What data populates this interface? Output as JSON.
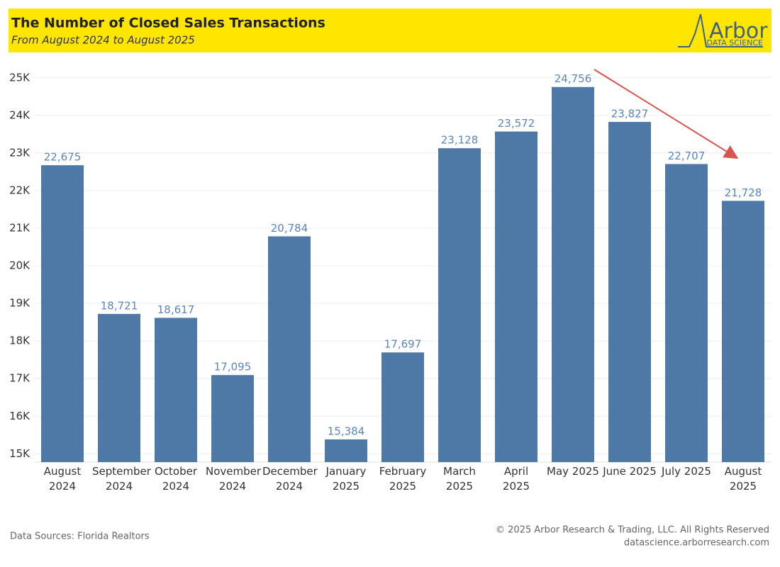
{
  "chart_data": {
    "type": "bar",
    "title": "The Number of Closed Sales Transactions",
    "subtitle": "From August 2024 to August 2025",
    "categories": [
      "August 2024",
      "September 2024",
      "October 2024",
      "November 2024",
      "December 2024",
      "January 2025",
      "February 2025",
      "March 2025",
      "April 2025",
      "May 2025",
      "June 2025",
      "July 2025",
      "August 2025"
    ],
    "values": [
      22675,
      18721,
      18617,
      17095,
      20784,
      15384,
      17697,
      23128,
      23572,
      24756,
      23827,
      22707,
      21728
    ],
    "value_labels": [
      "22,675",
      "18,721",
      "18,617",
      "17,095",
      "20,784",
      "15,384",
      "17,697",
      "23,128",
      "23,572",
      "24,756",
      "23,827",
      "22,707",
      "21,728"
    ],
    "color": "#4e79a7",
    "label_color": "#5b86b8",
    "ylim": [
      14780,
      25260
    ],
    "yticks": [
      {
        "value": 15000,
        "label": "15K"
      },
      {
        "value": 16000,
        "label": "16K"
      },
      {
        "value": 17000,
        "label": "17K"
      },
      {
        "value": 18000,
        "label": "18K"
      },
      {
        "value": 19000,
        "label": "19K"
      },
      {
        "value": 20000,
        "label": "20K"
      },
      {
        "value": 21000,
        "label": "21K"
      },
      {
        "value": 22000,
        "label": "22K"
      },
      {
        "value": 23000,
        "label": "23K"
      },
      {
        "value": 24000,
        "label": "24K"
      },
      {
        "value": 25000,
        "label": "25K"
      }
    ],
    "grid": true
  },
  "logo": {
    "name": "Arbor",
    "tagline": "DATA SCIENCE"
  },
  "footer": {
    "source": "Data Sources: Florida Realtors",
    "copyright": "© 2025 Arbor Research & Trading, LLC. All Rights Reserved",
    "website": "datascience.arborresearch.com"
  }
}
